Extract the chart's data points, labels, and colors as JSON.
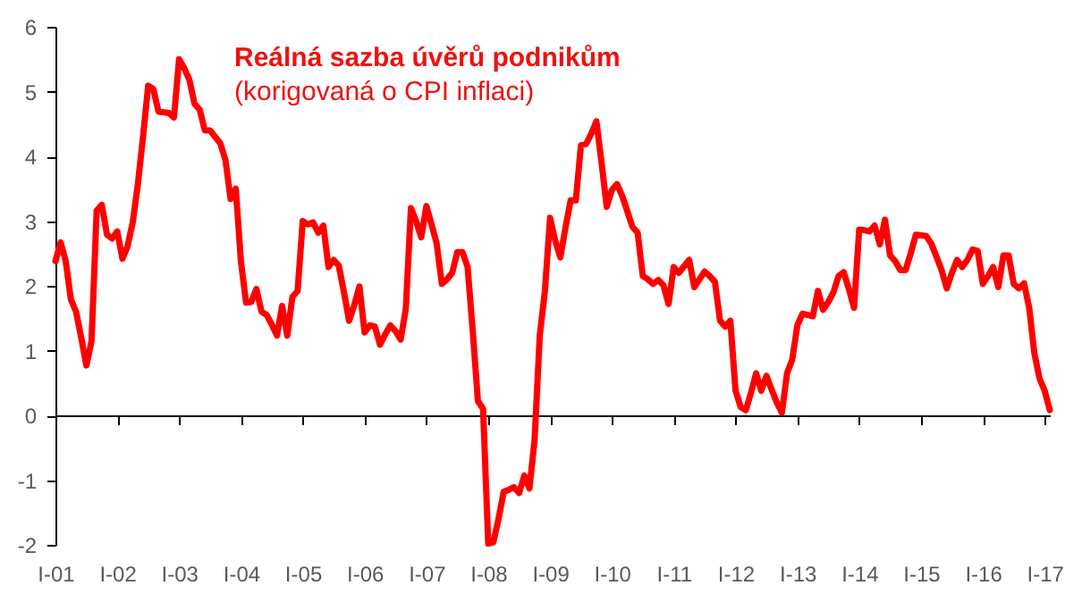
{
  "chart_data": {
    "type": "line",
    "title": "Reálná sazba úvěrů podnikům",
    "subtitle": "(korigovaná o CPI inflaci)",
    "categories": [
      "I-01",
      null,
      null,
      null,
      null,
      null,
      null,
      null,
      null,
      null,
      null,
      null,
      "I-02",
      null,
      null,
      null,
      null,
      null,
      null,
      null,
      null,
      null,
      null,
      null,
      "I-03",
      null,
      null,
      null,
      null,
      null,
      null,
      null,
      null,
      null,
      null,
      null,
      "I-04",
      null,
      null,
      null,
      null,
      null,
      null,
      null,
      null,
      null,
      null,
      null,
      "I-05",
      null,
      null,
      null,
      null,
      null,
      null,
      null,
      null,
      null,
      null,
      null,
      "I-06",
      null,
      null,
      null,
      null,
      null,
      null,
      null,
      null,
      null,
      null,
      null,
      "I-07",
      null,
      null,
      null,
      null,
      null,
      null,
      null,
      null,
      null,
      null,
      null,
      "I-08",
      null,
      null,
      null,
      null,
      null,
      null,
      null,
      null,
      null,
      null,
      null,
      "I-09",
      null,
      null,
      null,
      null,
      null,
      null,
      null,
      null,
      null,
      null,
      null,
      "I-10",
      null,
      null,
      null,
      null,
      null,
      null,
      null,
      null,
      null,
      null,
      null,
      "I-11",
      null,
      null,
      null,
      null,
      null,
      null,
      null,
      null,
      null,
      null,
      null,
      "I-12",
      null,
      null,
      null,
      null,
      null,
      null,
      null,
      null,
      null,
      null,
      null,
      "I-13",
      null,
      null,
      null,
      null,
      null,
      null,
      null,
      null,
      null,
      null,
      null,
      "I-14",
      null,
      null,
      null,
      null,
      null,
      null,
      null,
      null,
      null,
      null,
      null,
      "I-15",
      null,
      null,
      null,
      null,
      null,
      null,
      null,
      null,
      null,
      null,
      null,
      "I-16",
      null,
      null,
      null,
      null,
      null,
      null,
      null,
      null,
      null,
      null,
      null,
      "I-17",
      null
    ],
    "series": [
      {
        "color": "#ff0000",
        "values": [
          2.38,
          2.67,
          2.38,
          1.79,
          1.6,
          1.2,
          0.77,
          1.14,
          3.16,
          3.25,
          2.79,
          2.73,
          2.84,
          2.42,
          2.61,
          2.98,
          3.57,
          4.3,
          5.09,
          5.04,
          4.69,
          4.68,
          4.67,
          4.6,
          5.5,
          5.36,
          5.18,
          4.81,
          4.72,
          4.4,
          4.4,
          4.3,
          4.2,
          3.94,
          3.34,
          3.5,
          2.38,
          1.74,
          1.75,
          1.95,
          1.6,
          1.55,
          1.4,
          1.23,
          1.69,
          1.23,
          1.83,
          1.92,
          3.0,
          2.95,
          2.98,
          2.82,
          2.93,
          2.29,
          2.4,
          2.31,
          1.9,
          1.46,
          1.7,
          1.99,
          1.28,
          1.39,
          1.37,
          1.09,
          1.25,
          1.39,
          1.3,
          1.17,
          1.64,
          3.2,
          3.0,
          2.75,
          3.23,
          2.95,
          2.65,
          2.03,
          2.1,
          2.2,
          2.52,
          2.52,
          2.29,
          1.3,
          0.22,
          0.1,
          -1.98,
          -1.96,
          -1.6,
          -1.18,
          -1.15,
          -1.11,
          -1.2,
          -0.93,
          -1.13,
          -0.38,
          1.23,
          1.92,
          3.05,
          2.7,
          2.44,
          2.9,
          3.32,
          3.32,
          4.17,
          4.19,
          4.35,
          4.54,
          3.9,
          3.22,
          3.48,
          3.57,
          3.39,
          3.15,
          2.91,
          2.82,
          2.15,
          2.1,
          2.03,
          2.09,
          2.01,
          1.72,
          2.29,
          2.2,
          2.3,
          2.4,
          1.98,
          2.1,
          2.22,
          2.15,
          2.06,
          1.46,
          1.37,
          1.46,
          0.38,
          0.13,
          0.08,
          0.35,
          0.65,
          0.38,
          0.61,
          0.4,
          0.2,
          0.04,
          0.65,
          0.86,
          1.39,
          1.57,
          1.55,
          1.53,
          1.92,
          1.63,
          1.75,
          1.9,
          2.15,
          2.21,
          1.95,
          1.66,
          2.87,
          2.86,
          2.84,
          2.93,
          2.64,
          3.02,
          2.47,
          2.38,
          2.24,
          2.24,
          2.5,
          2.79,
          2.78,
          2.77,
          2.65,
          2.45,
          2.24,
          1.96,
          2.2,
          2.4,
          2.29,
          2.4,
          2.56,
          2.54,
          2.03,
          2.15,
          2.29,
          1.98,
          2.47,
          2.47,
          2.03,
          1.96,
          2.04,
          1.66,
          0.96,
          0.57,
          0.38,
          0.08
        ]
      }
    ],
    "ylim": [
      -2,
      6
    ],
    "yticks": [
      -2,
      -1,
      0,
      1,
      2,
      3,
      4,
      5,
      6
    ]
  }
}
